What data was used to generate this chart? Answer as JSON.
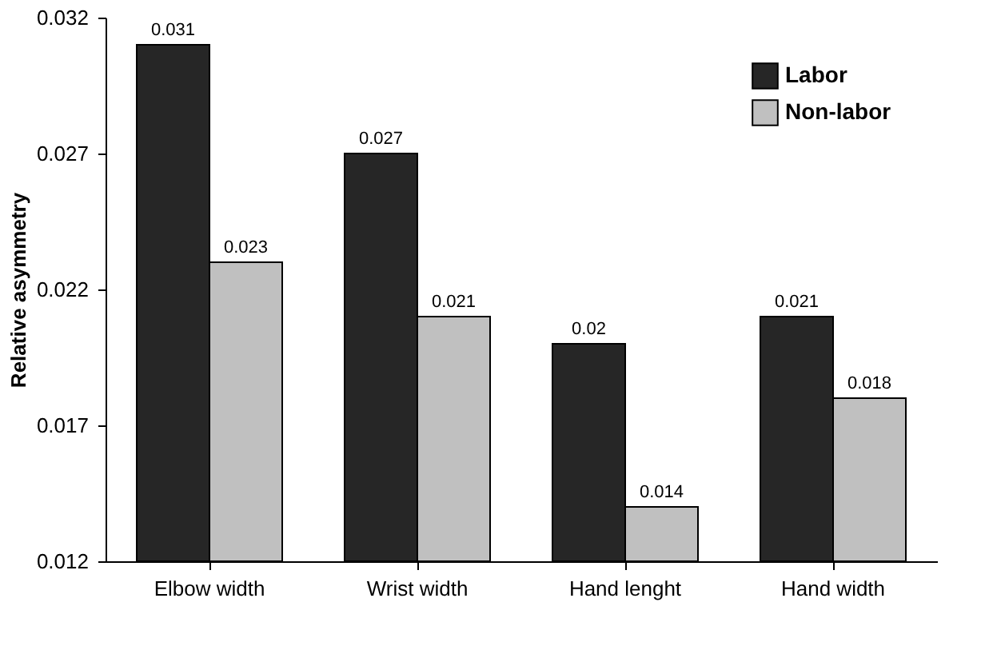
{
  "chart_data": {
    "type": "bar",
    "ylabel": "Relative asymmetry",
    "categories": [
      "Elbow width",
      "Wrist width",
      "Hand lenght",
      "Hand width"
    ],
    "series": [
      {
        "name": "Labor",
        "color": "#262626",
        "values": [
          0.031,
          0.027,
          0.02,
          0.021
        ]
      },
      {
        "name": "Non-labor",
        "color": "#c0c0c0",
        "values": [
          0.023,
          0.021,
          0.014,
          0.018
        ]
      }
    ],
    "ylim": [
      0.012,
      0.032
    ],
    "yticks": [
      0.012,
      0.017,
      0.022,
      0.027,
      0.032
    ],
    "grid": false,
    "legend": "top right",
    "data_labels": true
  }
}
